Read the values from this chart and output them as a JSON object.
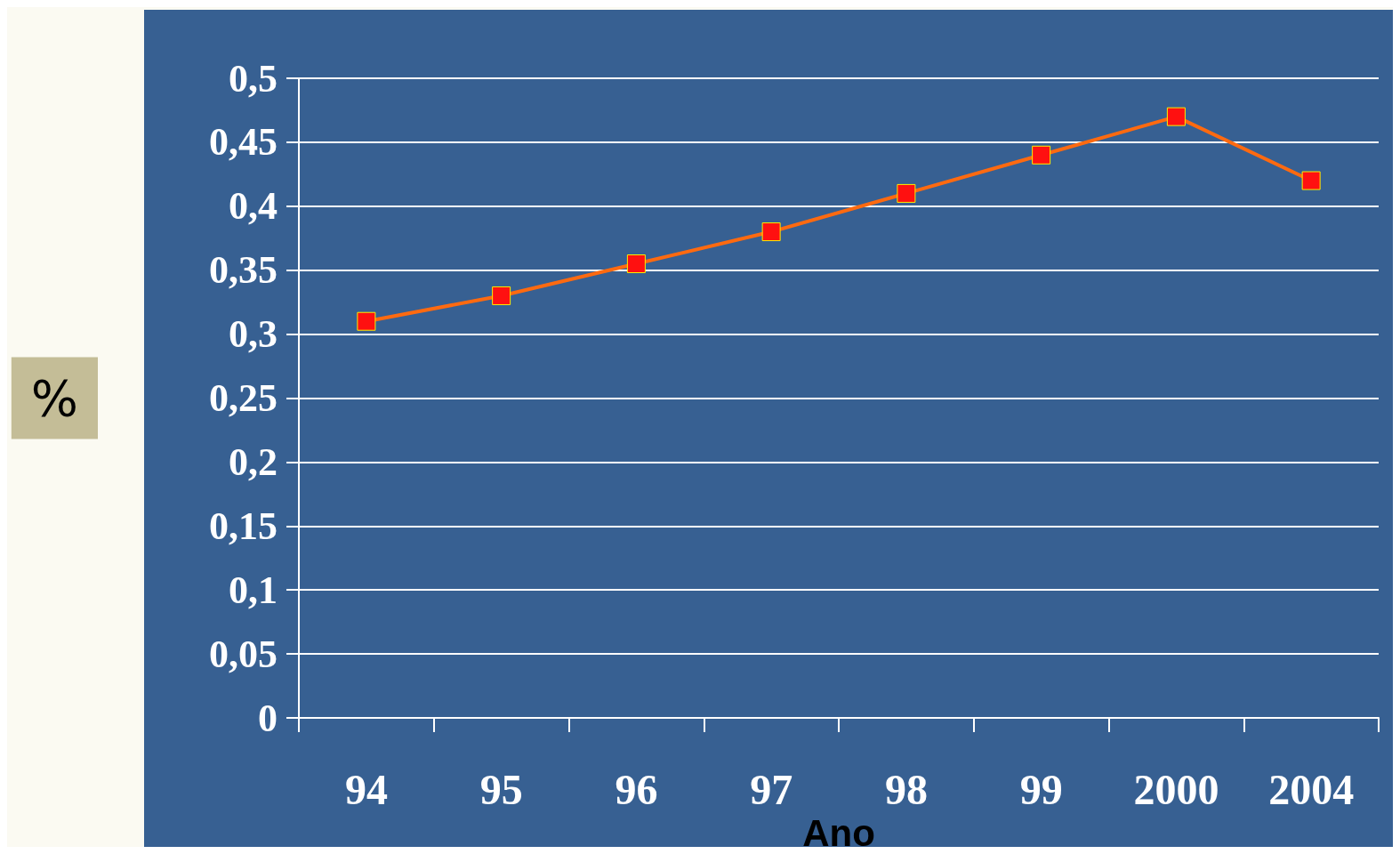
{
  "chart_data": {
    "type": "line",
    "xlabel": "Ano",
    "ylabel": "%",
    "categories": [
      "94",
      "95",
      "96",
      "97",
      "98",
      "99",
      "2000",
      "2004"
    ],
    "series": [
      {
        "color": "#ff6a10",
        "values": [
          0.31,
          0.33,
          0.355,
          0.38,
          0.41,
          0.44,
          0.47,
          0.42
        ]
      }
    ],
    "ylim": [
      0,
      0.5
    ],
    "yticks": [
      0,
      {
        "value": 0.05,
        "label": "0,05"
      },
      {
        "value": 0.1,
        "label": "0,1"
      },
      {
        "value": 0.15,
        "label": "0,15"
      },
      {
        "value": 0.2,
        "label": "0,2"
      },
      {
        "value": 0.25,
        "label": "0,25"
      },
      {
        "value": 0.3,
        "label": "0,3"
      },
      {
        "value": 0.35,
        "label": "0,35"
      },
      {
        "value": 0.4,
        "label": "0,4"
      },
      {
        "value": 0.45,
        "label": "0,45"
      },
      {
        "value": 0.5,
        "label": "0,5"
      }
    ],
    "grid": "y",
    "marker": "square",
    "line_style": "solid"
  }
}
